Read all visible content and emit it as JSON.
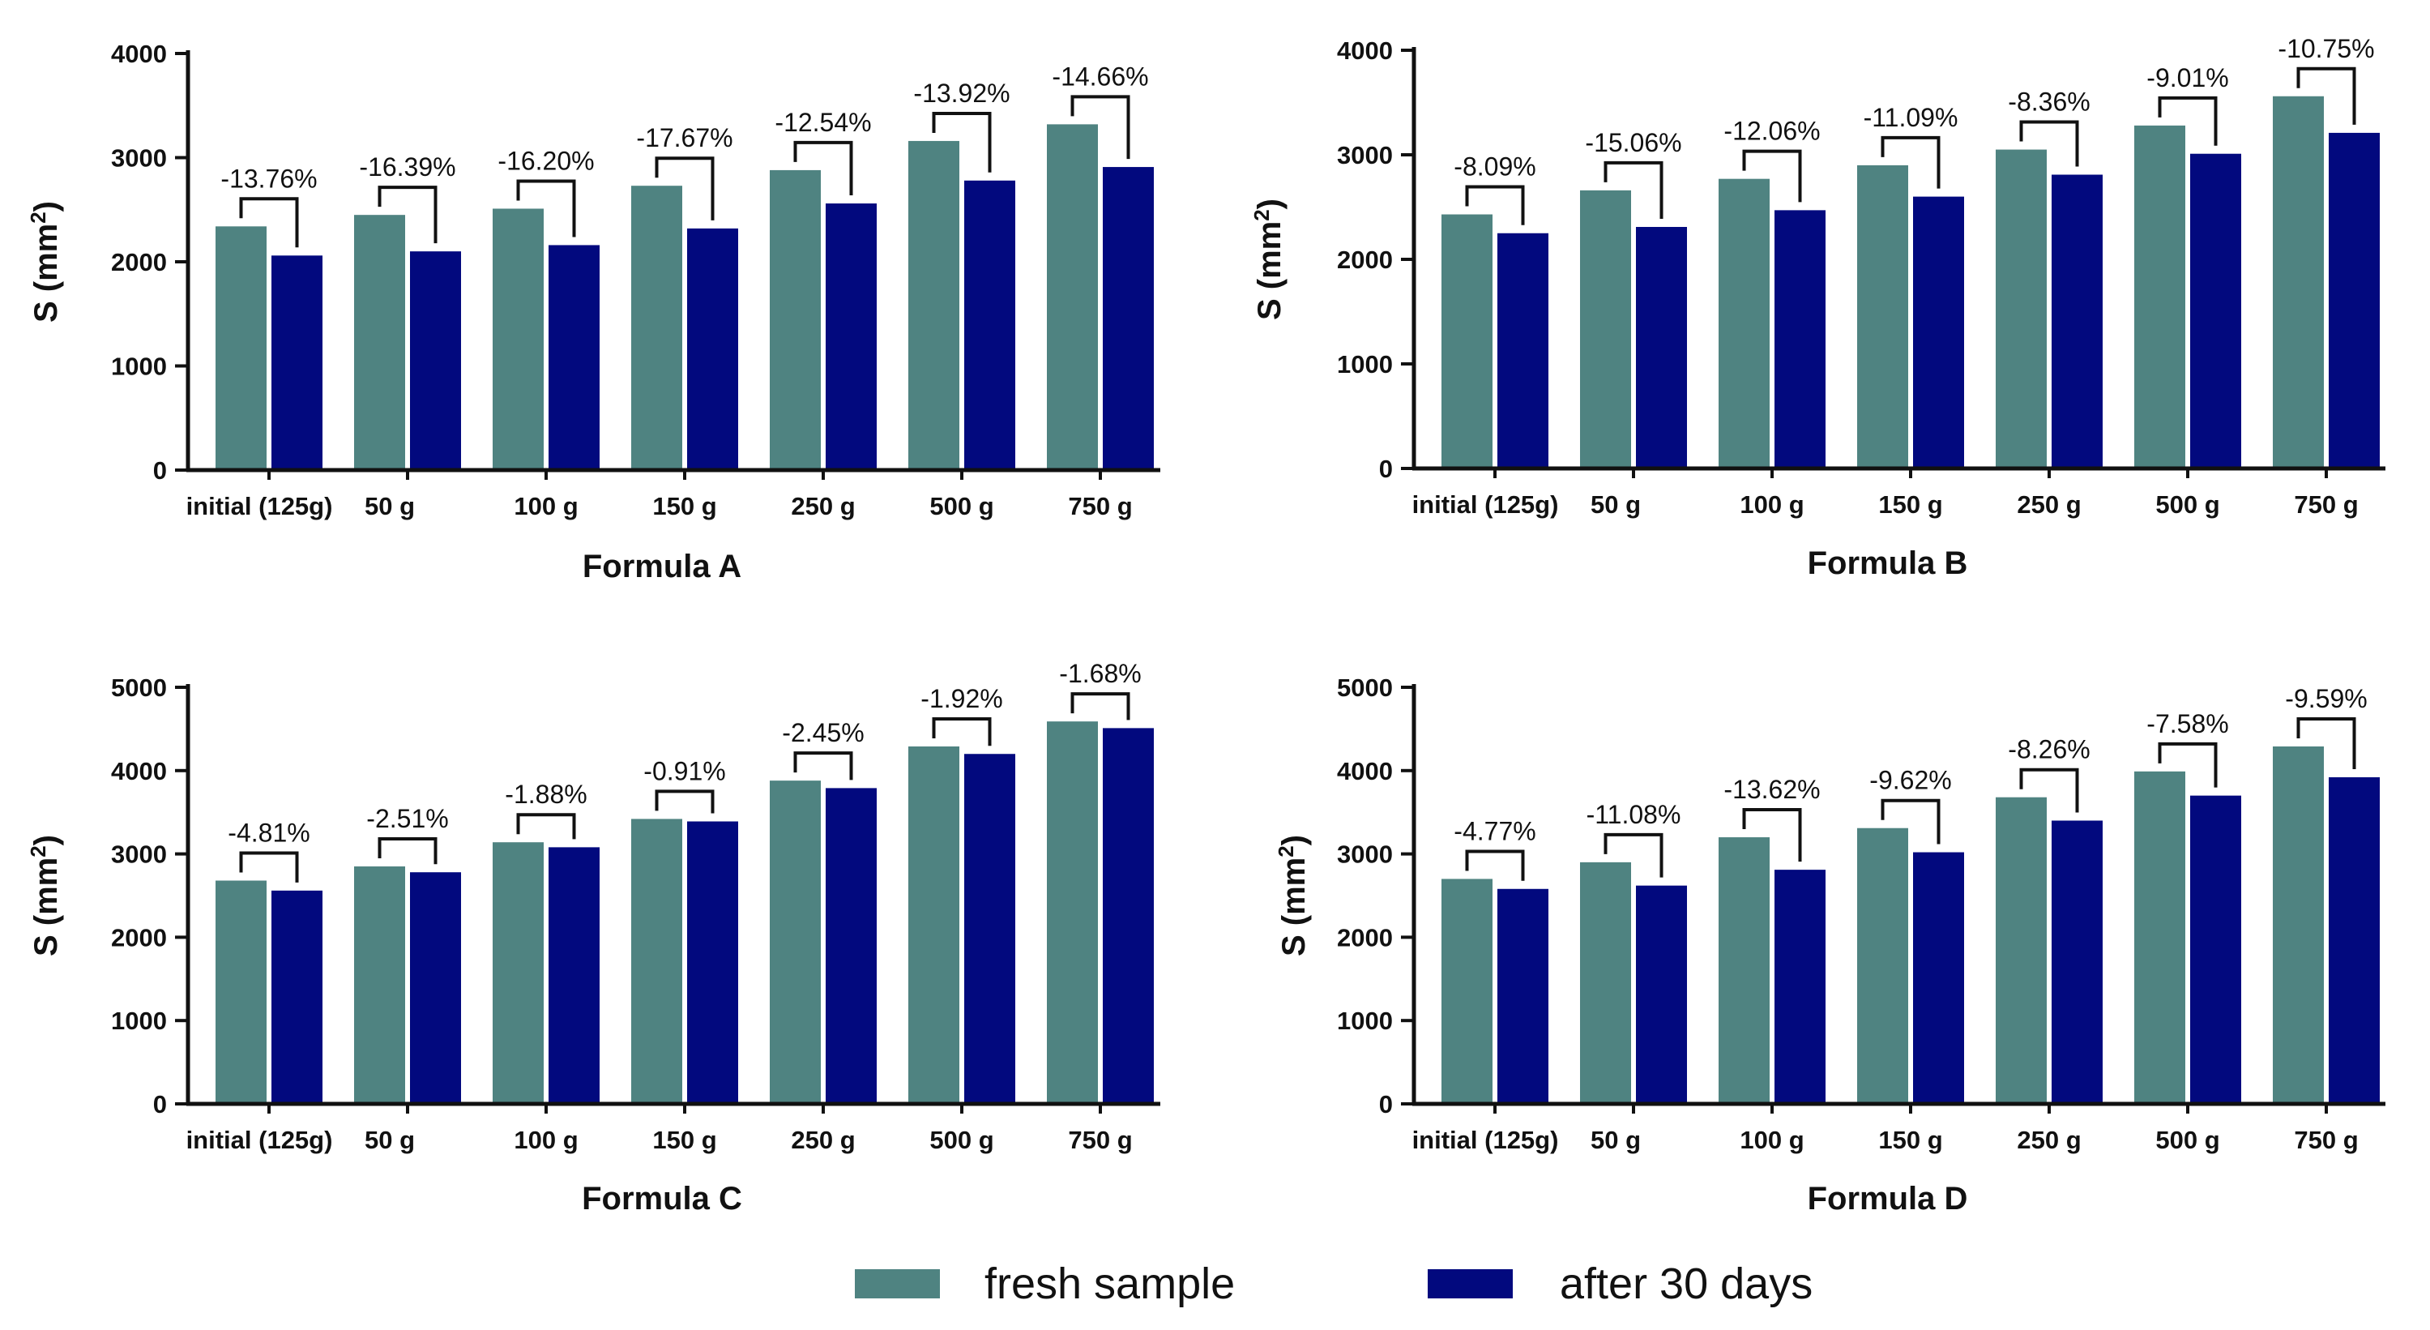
{
  "chart_data": [
    {
      "type": "bar",
      "title": "",
      "xlabel": "Formula A",
      "ylabel": "S (mm",
      "ylabel_superscript": "2",
      "ylabel_close": ")",
      "categories": [
        "initial (125g)",
        "50 g",
        "100 g",
        "150 g",
        "250 g",
        "500 g",
        "750 g"
      ],
      "ylim": [
        0,
        4000
      ],
      "yticks": [
        "0",
        "1000",
        "2000",
        "3000",
        "4000"
      ],
      "series": [
        {
          "name": "fresh sample",
          "values": [
            2340,
            2450,
            2510,
            2730,
            2880,
            3160,
            3320
          ]
        },
        {
          "name": "after 30 days",
          "values": [
            2060,
            2100,
            2160,
            2320,
            2560,
            2780,
            2910
          ]
        }
      ],
      "annotations": [
        "-13.76%",
        "-16.39%",
        "-16.20%",
        "-17.67%",
        "-12.54%",
        "-13.92%",
        "-14.66%"
      ]
    },
    {
      "type": "bar",
      "title": "",
      "xlabel": "Formula B",
      "ylabel": "S (mm",
      "ylabel_superscript": "2",
      "ylabel_close": ")",
      "categories": [
        "initial (125g)",
        "50 g",
        "100 g",
        "150 g",
        "250 g",
        "500 g",
        "750 g"
      ],
      "ylim": [
        0,
        4000
      ],
      "yticks": [
        "0",
        "1000",
        "2000",
        "3000",
        "4000"
      ],
      "series": [
        {
          "name": "fresh sample",
          "values": [
            2430,
            2660,
            2770,
            2900,
            3050,
            3280,
            3560
          ]
        },
        {
          "name": "after 30 days",
          "values": [
            2250,
            2310,
            2470,
            2600,
            2810,
            3010,
            3210
          ]
        }
      ],
      "annotations": [
        "-8.09%",
        "-15.06%",
        "-12.06%",
        "-11.09%",
        "-8.36%",
        "-9.01%",
        "-10.75%"
      ]
    },
    {
      "type": "bar",
      "title": "",
      "xlabel": "Formula C",
      "ylabel": "S (mm",
      "ylabel_superscript": "2",
      "ylabel_close": ")",
      "categories": [
        "initial (125g)",
        "50 g",
        "100 g",
        "150 g",
        "250 g",
        "500 g",
        "750 g"
      ],
      "ylim": [
        0,
        5000
      ],
      "yticks": [
        "0",
        "1000",
        "2000",
        "3000",
        "4000",
        "5000"
      ],
      "series": [
        {
          "name": "fresh sample",
          "values": [
            2680,
            2850,
            3140,
            3420,
            3880,
            4290,
            4590
          ]
        },
        {
          "name": "after 30 days",
          "values": [
            2560,
            2780,
            3080,
            3390,
            3790,
            4200,
            4510
          ]
        }
      ],
      "annotations": [
        "-4.81%",
        "-2.51%",
        "-1.88%",
        "-0.91%",
        "-2.45%",
        "-1.92%",
        "-1.68%"
      ]
    },
    {
      "type": "bar",
      "title": "",
      "xlabel": "Formula D",
      "ylabel": "S (mm",
      "ylabel_superscript": "2",
      "ylabel_close": ")",
      "categories": [
        "initial (125g)",
        "50 g",
        "100 g",
        "150 g",
        "250 g",
        "500 g",
        "750 g"
      ],
      "ylim": [
        0,
        5000
      ],
      "yticks": [
        "0",
        "1000",
        "2000",
        "3000",
        "4000",
        "5000"
      ],
      "series": [
        {
          "name": "fresh sample",
          "values": [
            2700,
            2900,
            3200,
            3310,
            3680,
            3990,
            4290
          ]
        },
        {
          "name": "after 30 days",
          "values": [
            2580,
            2620,
            2810,
            3020,
            3400,
            3700,
            3920
          ]
        }
      ],
      "annotations": [
        "-4.77%",
        "-11.08%",
        "-13.62%",
        "-9.62%",
        "-8.26%",
        "-7.58%",
        "-9.59%"
      ]
    }
  ],
  "legend": {
    "position": "bottom-center",
    "items": [
      {
        "label": "fresh sample",
        "color": "#4f8381"
      },
      {
        "label": "after 30 days",
        "color": "#02097e"
      }
    ]
  },
  "colors": {
    "fresh": "#4f8381",
    "aged": "#02097e",
    "axis": "#111111"
  }
}
